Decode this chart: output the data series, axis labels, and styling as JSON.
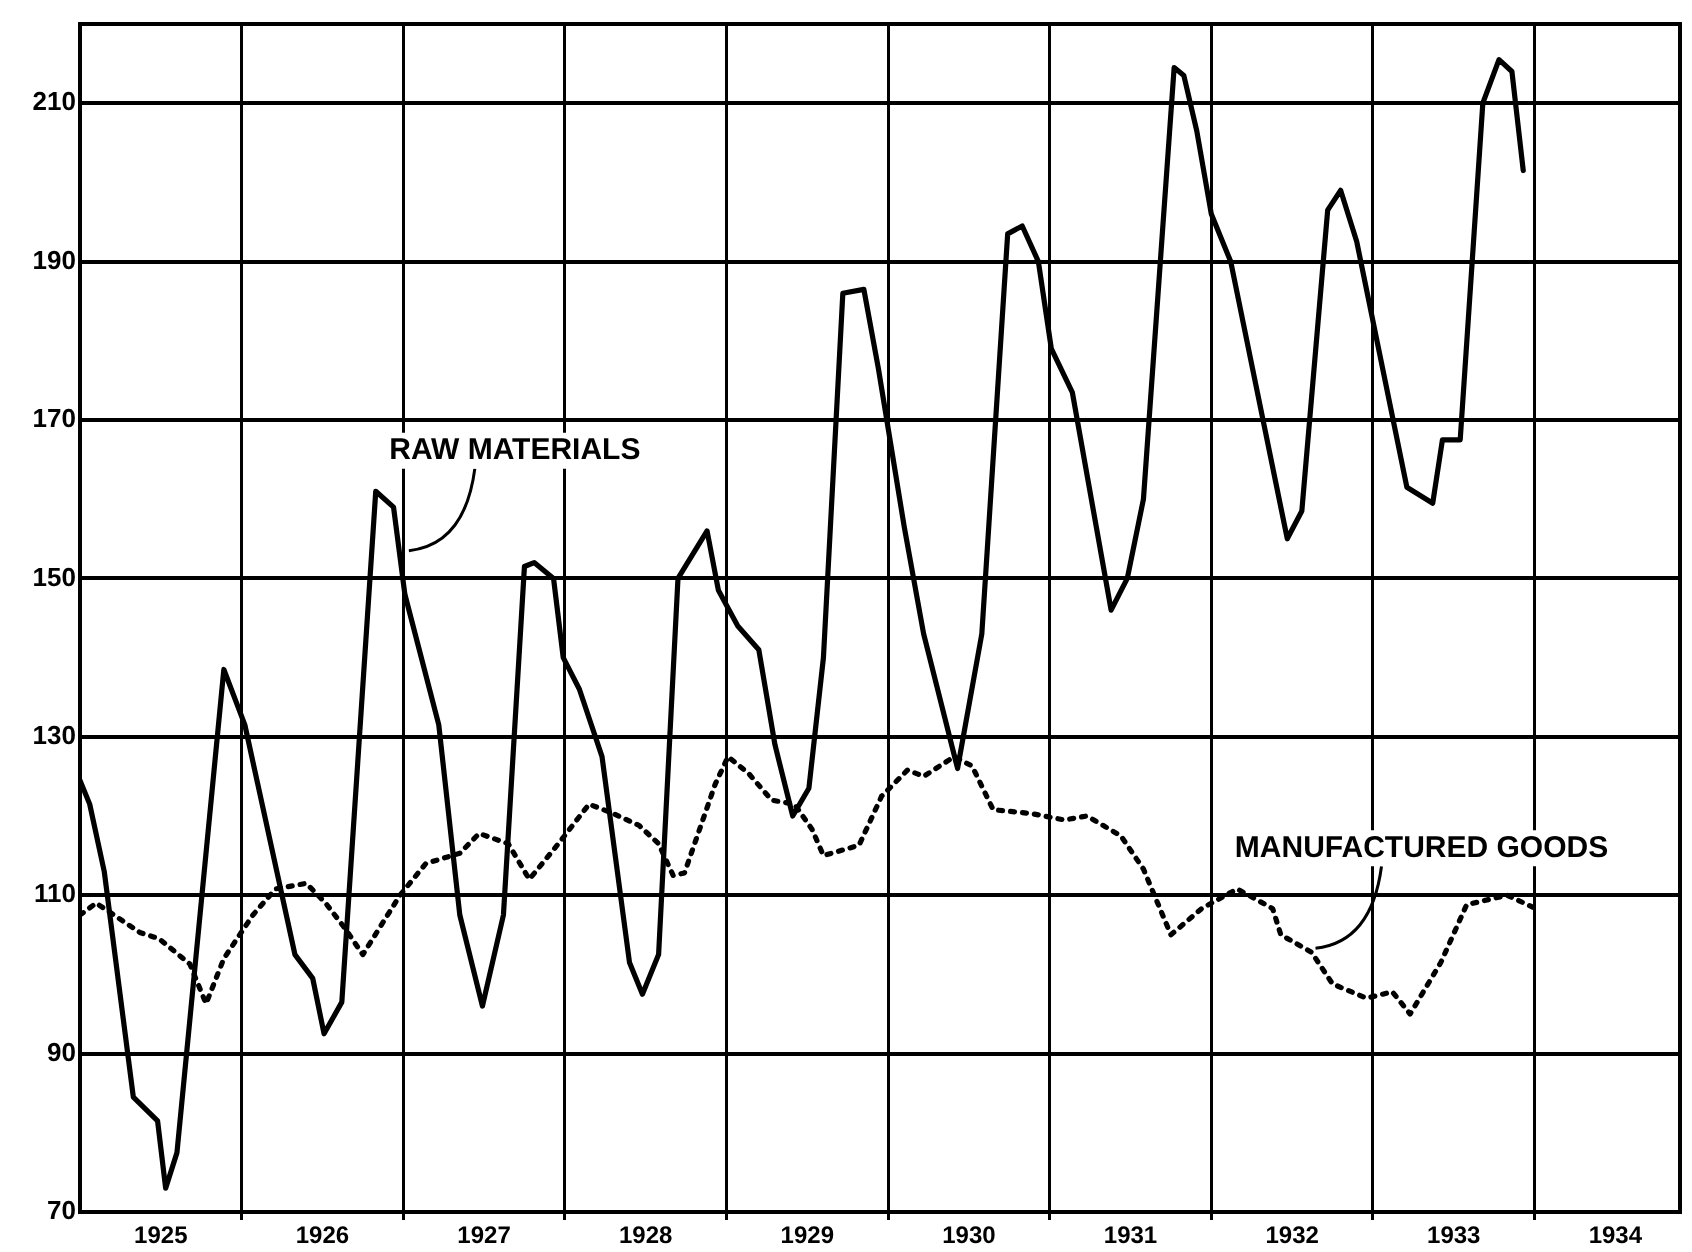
{
  "chart_data": {
    "type": "line",
    "xlim": [
      1925,
      1934.9
    ],
    "xticks": [
      {
        "value": 1925.5,
        "label": "1925"
      },
      {
        "value": 1926,
        "label": null
      },
      {
        "value": 1926.5,
        "label": "1926"
      },
      {
        "value": 1927,
        "label": null
      },
      {
        "value": 1927.5,
        "label": "1927"
      },
      {
        "value": 1928,
        "label": null
      },
      {
        "value": 1928.5,
        "label": "1928"
      },
      {
        "value": 1929,
        "label": null
      },
      {
        "value": 1929.5,
        "label": "1929"
      },
      {
        "value": 1930,
        "label": null
      },
      {
        "value": 1930.5,
        "label": "1930"
      },
      {
        "value": 1931,
        "label": null
      },
      {
        "value": 1931.5,
        "label": "1931"
      },
      {
        "value": 1932,
        "label": null
      },
      {
        "value": 1932.5,
        "label": "1932"
      },
      {
        "value": 1933,
        "label": null
      },
      {
        "value": 1933.5,
        "label": "1933"
      },
      {
        "value": 1934,
        "label": null
      },
      {
        "value": 1934.5,
        "label": "1934"
      }
    ],
    "ylim": [
      70,
      220
    ],
    "yticks": [
      70,
      90,
      110,
      130,
      150,
      170,
      190,
      210
    ],
    "grid": true,
    "legend": false,
    "marker": "none",
    "series": [
      {
        "color": "#000000",
        "line_style": "solid",
        "x": [
          1925.0,
          1925.06,
          1925.15,
          1925.33,
          1925.48,
          1925.53,
          1925.6,
          1925.89,
          1926.02,
          1926.33,
          1926.44,
          1926.51,
          1926.62,
          1926.83,
          1926.94,
          1927.01,
          1927.22,
          1927.35,
          1927.49,
          1927.62,
          1927.75,
          1927.81,
          1927.93,
          1927.99,
          1928.09,
          1928.23,
          1928.4,
          1928.48,
          1928.58,
          1928.7,
          1928.88,
          1928.95,
          1929.07,
          1929.2,
          1929.3,
          1929.41,
          1929.51,
          1929.6,
          1929.72,
          1929.85,
          1929.94,
          1930.1,
          1930.22,
          1930.43,
          1930.58,
          1930.74,
          1930.83,
          1930.93,
          1931.01,
          1931.14,
          1931.38,
          1931.48,
          1931.58,
          1931.77,
          1931.83,
          1931.91,
          1932.0,
          1932.12,
          1932.47,
          1932.56,
          1932.72,
          1932.8,
          1932.9,
          1933.21,
          1933.37,
          1933.43,
          1933.54,
          1933.68,
          1933.78,
          1933.86,
          1933.93
        ],
        "values": [
          124.5,
          121.5,
          113,
          84.5,
          81.5,
          73,
          77.5,
          138.5,
          131.5,
          102.5,
          99.5,
          92.5,
          96.5,
          161,
          159,
          148,
          131.5,
          107.5,
          96,
          107.5,
          151.5,
          152,
          150,
          140,
          136,
          127.5,
          101.5,
          97.5,
          102.5,
          150,
          156,
          148.5,
          144,
          141,
          129,
          120,
          123.5,
          140,
          186,
          186.5,
          176.5,
          156.5,
          143,
          126,
          143,
          193.5,
          194.5,
          190,
          179,
          173.5,
          146,
          150,
          160,
          214.5,
          213.5,
          206.5,
          196,
          190,
          155,
          158.5,
          196.5,
          199,
          192.5,
          161.5,
          159.5,
          167.5,
          167.5,
          210,
          215.5,
          214,
          201.5
        ]
      },
      {
        "color": "#000000",
        "line_style": "dotted",
        "x": [
          1925.0,
          1925.1,
          1925.21,
          1925.37,
          1925.49,
          1925.68,
          1925.78,
          1925.89,
          1926.07,
          1926.21,
          1926.4,
          1926.52,
          1926.64,
          1926.75,
          1926.98,
          1927.14,
          1927.35,
          1927.47,
          1927.65,
          1927.78,
          1927.96,
          1928.15,
          1928.3,
          1928.46,
          1928.58,
          1928.67,
          1928.74,
          1928.93,
          1929.01,
          1929.14,
          1929.28,
          1929.42,
          1929.53,
          1929.6,
          1929.82,
          1929.96,
          1930.12,
          1930.22,
          1930.41,
          1930.52,
          1930.65,
          1930.89,
          1931.09,
          1931.23,
          1931.44,
          1931.58,
          1931.75,
          1931.94,
          1932.16,
          1932.38,
          1932.43,
          1932.62,
          1932.75,
          1932.96,
          1933.12,
          1933.23,
          1933.42,
          1933.58,
          1933.83,
          1934.01
        ],
        "values": [
          107.5,
          109,
          107.5,
          105.3,
          104.5,
          101.3,
          96.3,
          102,
          107.5,
          110.8,
          111.5,
          109,
          105.8,
          102.5,
          110,
          114,
          115.3,
          117.8,
          116.5,
          112,
          116.5,
          121.5,
          120.3,
          118.8,
          116.5,
          112.5,
          112.8,
          124,
          127.5,
          125.3,
          122,
          121.5,
          118.3,
          115,
          116.3,
          122.5,
          125.8,
          125,
          127.5,
          126.3,
          120.8,
          120.3,
          119.5,
          120,
          117.5,
          113.3,
          105,
          108.3,
          110.8,
          108.3,
          105,
          102.8,
          98.8,
          97,
          97.8,
          95,
          101.5,
          108.8,
          110,
          108.3
        ]
      }
    ],
    "annotations": [
      {
        "text": "RAW MATERIALS",
        "x": 1927.01,
        "y": 153
      },
      {
        "text": "MANUFACTURED GOODS",
        "x": 1932.62,
        "y": 102.8
      }
    ]
  }
}
